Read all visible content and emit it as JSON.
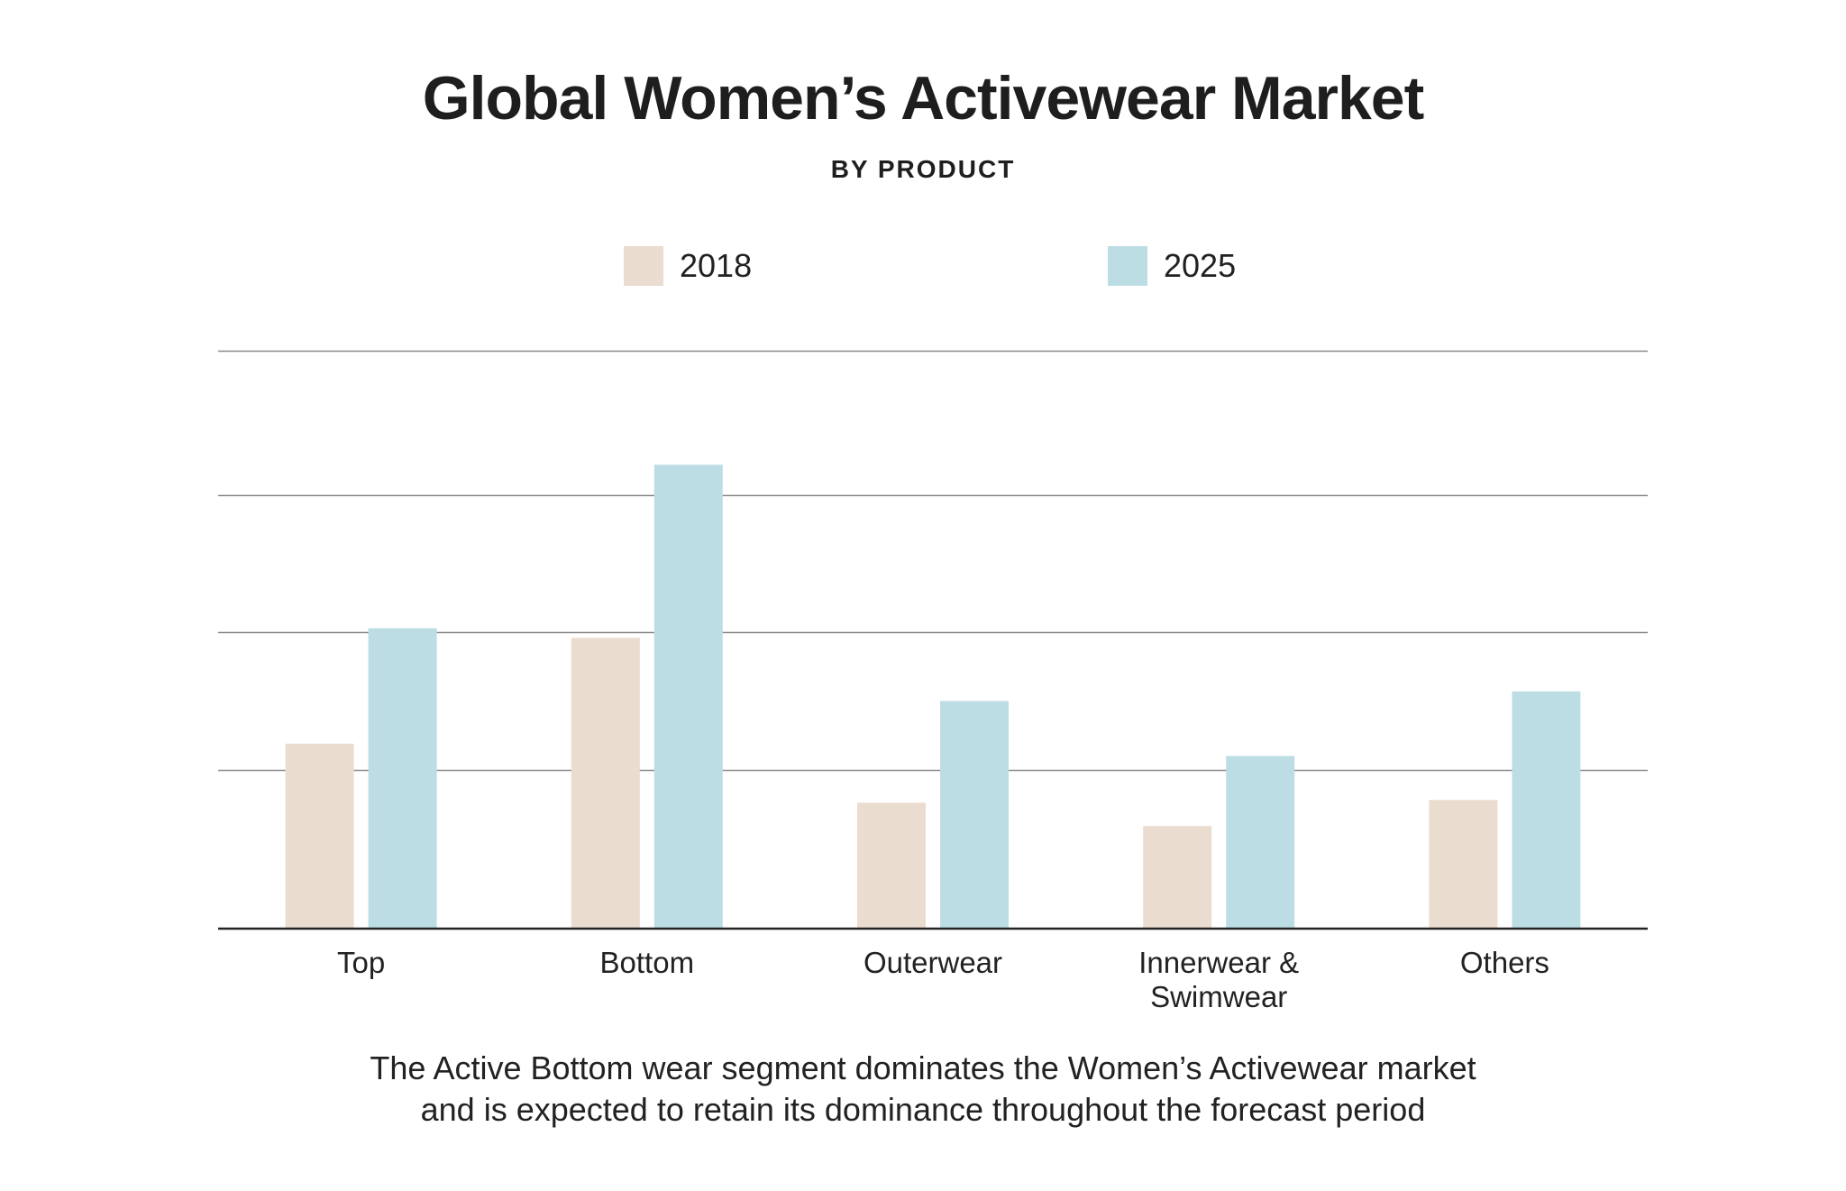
{
  "chart_data": {
    "type": "bar",
    "title": "Global Women’s Activewear Market",
    "subtitle": "BY PRODUCT",
    "categories": [
      [
        "Top"
      ],
      [
        "Bottom"
      ],
      [
        "Outerwear"
      ],
      [
        "Innerwear &",
        "Swimwear"
      ],
      [
        "Others"
      ]
    ],
    "series": [
      {
        "name": "2018",
        "color": "#ebdcd0",
        "values": [
          1.34,
          2.11,
          0.91,
          0.74,
          0.93
        ]
      },
      {
        "name": "2025",
        "color": "#bddde5",
        "values": [
          2.18,
          3.37,
          1.65,
          1.25,
          1.72
        ]
      }
    ],
    "ylim": [
      0,
      4.2
    ],
    "gridlines": [
      1.15,
      2.15,
      3.15,
      4.2
    ],
    "grid": true,
    "tick_labels_y": false,
    "legend_position": "top-center"
  },
  "caption": {
    "line1": "The Active Bottom wear segment dominates the Women’s Activewear market",
    "line2": "and is expected to retain its dominance throughout the forecast period"
  }
}
